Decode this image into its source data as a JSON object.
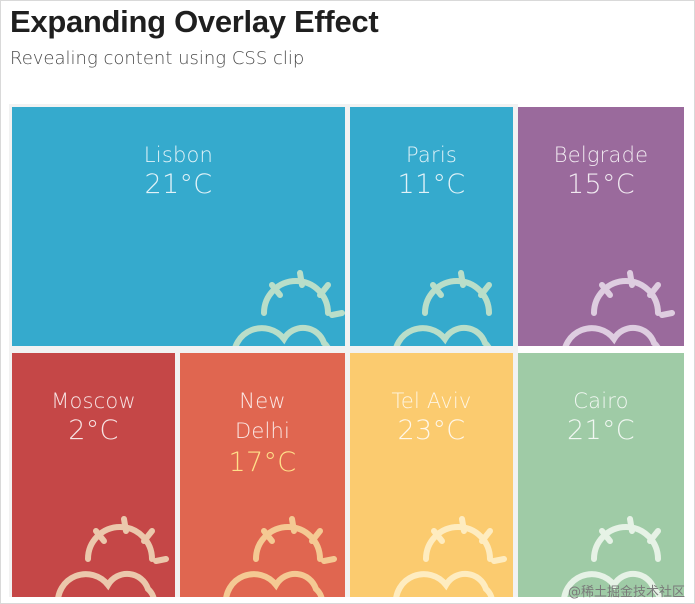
{
  "header": {
    "title": "Expanding Overlay Effect",
    "subtitle": "Revealing content using CSS clip"
  },
  "tiles": [
    {
      "city": "Lisbon",
      "temp": "21°C",
      "color": "#35aacd",
      "icon": "sun-cloud-icon"
    },
    {
      "city": "Paris",
      "temp": "11°C",
      "color": "#35aacd",
      "icon": "sun-cloud-icon"
    },
    {
      "city": "Belgrade",
      "temp": "15°C",
      "color": "#9a6a9c",
      "icon": "sun-cloud-icon"
    },
    {
      "city": "Moscow",
      "temp": "2°C",
      "color": "#c54747",
      "icon": "sun-cloud-icon"
    },
    {
      "city_line1": "New",
      "city_line2": "Delhi",
      "temp": "17°C",
      "color": "#e06650",
      "icon": "sun-cloud-icon"
    },
    {
      "city": "Tel Aviv",
      "temp": "23°C",
      "color": "#fbcb6f",
      "icon": "sun-cloud-icon"
    },
    {
      "city": "Cairo",
      "temp": "21°C",
      "color": "#9fcba6",
      "icon": "sun-cloud-icon"
    }
  ],
  "watermark": "@稀土掘金技术社区"
}
